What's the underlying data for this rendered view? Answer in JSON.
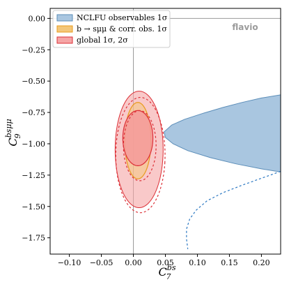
{
  "chart_data": {
    "type": "contour",
    "x_axis": {
      "label": "C",
      "label_sub": "7",
      "label_sup": "bs",
      "range": [
        -0.13,
        0.23
      ],
      "ticks": [
        -0.1,
        -0.05,
        0.0,
        0.05,
        0.1,
        0.15,
        0.2
      ],
      "tick_labels": [
        "−0.10",
        "−0.05",
        "0.00",
        "0.05",
        "0.10",
        "0.15",
        "0.20"
      ]
    },
    "y_axis": {
      "label": "C",
      "label_sub": "9",
      "label_sup": "bsμμ",
      "range": [
        -1.88,
        0.08
      ],
      "ticks": [
        0.0,
        -0.25,
        -0.5,
        -0.75,
        -1.0,
        -1.25,
        -1.5,
        -1.75
      ],
      "tick_labels": [
        "0.00",
        "−0.25",
        "−0.50",
        "−0.75",
        "−1.00",
        "−1.25",
        "−1.50",
        "−1.75"
      ]
    },
    "reference_lines": {
      "x": 0.0,
      "y": 0.0
    },
    "grid": false,
    "watermark": "flavio",
    "legend": {
      "placement": "top-left",
      "entries": [
        {
          "label": "NCLFU observables 1σ",
          "color": "#5b8db8",
          "fill": "#a9c6e0"
        },
        {
          "label": "b → sμμ & corr. obs. 1σ",
          "color": "#e89b1c",
          "fill": "#f3c77a"
        },
        {
          "label": "global 1σ, 2σ",
          "color": "#dc2f36",
          "fill": "#f5a5a5"
        }
      ]
    },
    "regions": [
      {
        "name": "NCLFU observables 1σ",
        "color": "#5b8db8",
        "fill": "#a9c6e0",
        "contour_1sigma": [
          [
            0.23,
            -0.61
          ],
          [
            0.2,
            -0.635
          ],
          [
            0.17,
            -0.67
          ],
          [
            0.14,
            -0.71
          ],
          [
            0.11,
            -0.755
          ],
          [
            0.08,
            -0.805
          ],
          [
            0.06,
            -0.85
          ],
          [
            0.048,
            -0.905
          ],
          [
            0.05,
            -0.95
          ],
          [
            0.062,
            -1.0
          ],
          [
            0.085,
            -1.055
          ],
          [
            0.12,
            -1.11
          ],
          [
            0.16,
            -1.16
          ],
          [
            0.2,
            -1.2
          ],
          [
            0.23,
            -1.225
          ]
        ],
        "contour_2sigma": [
          [
            0.23,
            -1.22
          ],
          [
            0.2,
            -1.275
          ],
          [
            0.17,
            -1.33
          ],
          [
            0.14,
            -1.39
          ],
          [
            0.115,
            -1.455
          ],
          [
            0.098,
            -1.53
          ],
          [
            0.088,
            -1.6
          ],
          [
            0.083,
            -1.68
          ],
          [
            0.083,
            -1.76
          ],
          [
            0.085,
            -1.84
          ]
        ]
      },
      {
        "name": "b → sμμ & corr. obs. 1σ",
        "color": "#e89b1c",
        "fill": "#f3c77a",
        "ellipse": {
          "cx": 0.007,
          "cy": -0.975,
          "rx": 0.0205,
          "ry": 0.305,
          "rotation_deg": -8
        }
      },
      {
        "name": "global",
        "color": "#dc2f36",
        "fill": "#f5a5a5",
        "sigma1": {
          "cx": 0.007,
          "cy": -0.955,
          "rx": 0.0235,
          "ry": 0.22,
          "rotation_deg": -8
        },
        "sigma2": {
          "cx": 0.009,
          "cy": -1.045,
          "rx": 0.0375,
          "ry": 0.465,
          "rotation_deg": -8
        },
        "sigma1_dashed": {
          "cx": 0.01,
          "cy": -1.015,
          "rx": 0.0255,
          "ry": 0.28,
          "rotation_deg": -8
        },
        "sigma2_dashed": {
          "cx": 0.011,
          "cy": -1.09,
          "rx": 0.0385,
          "ry": 0.46,
          "rotation_deg": -8
        }
      }
    ]
  }
}
